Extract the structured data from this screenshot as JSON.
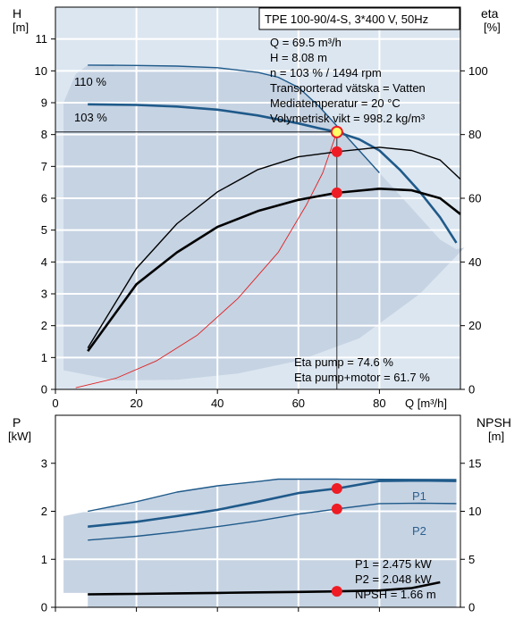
{
  "chart_data": [
    {
      "type": "line",
      "panel": "head-efficiency",
      "left_axis": {
        "title": "H",
        "unit": "[m]",
        "range": [
          0,
          12
        ],
        "ticks": [
          0,
          1,
          2,
          3,
          4,
          5,
          6,
          7,
          8,
          9,
          10,
          11
        ]
      },
      "right_axis": {
        "title": "eta",
        "unit": "[%]",
        "range": [
          0,
          120
        ],
        "ticks": [
          0,
          20,
          40,
          60,
          80,
          100
        ]
      },
      "x_axis": {
        "title": "Q [m³/h]",
        "range": [
          0,
          100
        ],
        "ticks": [
          0,
          20,
          40,
          60,
          80
        ]
      },
      "grid": true,
      "info_box": {
        "title": "TPE 100-90/4-S, 3*400 V, 50Hz",
        "lines": [
          "Q = 69.5 m³/h",
          "H = 8.08 m",
          "n = 103 % / 1494 rpm",
          "Transporterad vätska = Vatten",
          "Mediatemperatur = 20 °C",
          "Volymetrisk vikt = 998.2 kg/m³"
        ]
      },
      "annotations": [
        "Eta pump = 74.6 %",
        "Eta pump+motor = 61.7 %"
      ],
      "series": [
        {
          "name": "110 %",
          "axis": "left",
          "color": "#1f5a8a",
          "points": [
            [
              8,
              10.18
            ],
            [
              20,
              10.17
            ],
            [
              30,
              10.15
            ],
            [
              40,
              10.1
            ],
            [
              50,
              9.95
            ],
            [
              55,
              9.8
            ],
            [
              60,
              9.48
            ],
            [
              65,
              8.9
            ],
            [
              70,
              8.2
            ],
            [
              75,
              7.5
            ],
            [
              80,
              6.8
            ]
          ]
        },
        {
          "name": "103 %",
          "axis": "left",
          "color": "#1f5a8a",
          "points": [
            [
              8,
              8.95
            ],
            [
              20,
              8.93
            ],
            [
              30,
              8.88
            ],
            [
              40,
              8.78
            ],
            [
              50,
              8.6
            ],
            [
              60,
              8.35
            ],
            [
              65,
              8.2
            ],
            [
              69.5,
              8.08
            ],
            [
              75,
              7.85
            ],
            [
              80,
              7.5
            ],
            [
              85,
              6.9
            ],
            [
              90,
              6.2
            ],
            [
              95,
              5.4
            ],
            [
              99,
              4.6
            ]
          ]
        },
        {
          "name": "",
          "axis": "left",
          "role": "system-curve",
          "color": "#e02020",
          "points": [
            [
              5,
              0.05
            ],
            [
              15,
              0.35
            ],
            [
              25,
              0.9
            ],
            [
              35,
              1.7
            ],
            [
              45,
              2.85
            ],
            [
              55,
              4.3
            ],
            [
              62,
              5.8
            ],
            [
              66,
              6.8
            ],
            [
              69.5,
              8.08
            ]
          ]
        },
        {
          "name": "",
          "axis": "right",
          "role": "eta-pump",
          "color": "#000000",
          "points": [
            [
              8,
              13
            ],
            [
              20,
              38
            ],
            [
              30,
              52
            ],
            [
              40,
              62
            ],
            [
              50,
              69
            ],
            [
              60,
              73
            ],
            [
              69.5,
              74.6
            ],
            [
              80,
              76
            ],
            [
              88,
              75
            ],
            [
              95,
              72
            ],
            [
              100,
              66
            ]
          ]
        },
        {
          "name": "",
          "axis": "right",
          "role": "eta-pump-motor",
          "color": "#000000",
          "points": [
            [
              8,
              12
            ],
            [
              20,
              33
            ],
            [
              30,
              43
            ],
            [
              40,
              51
            ],
            [
              50,
              56
            ],
            [
              60,
              59.5
            ],
            [
              69.5,
              61.7
            ],
            [
              80,
              63
            ],
            [
              88,
              62.5
            ],
            [
              95,
              60
            ],
            [
              100,
              55
            ]
          ]
        }
      ],
      "operating_points": [
        {
          "axis": "left",
          "x": 69.5,
          "y": 8.08
        },
        {
          "axis": "right",
          "x": 69.5,
          "y": 74.6
        },
        {
          "axis": "right",
          "x": 69.5,
          "y": 61.7
        }
      ]
    },
    {
      "type": "line",
      "panel": "power-npsh",
      "left_axis": {
        "title": "P",
        "unit": "[kW]",
        "range": [
          0,
          4
        ],
        "ticks": [
          0,
          1,
          2,
          3
        ]
      },
      "right_axis": {
        "title": "NPSH",
        "unit": "[m]",
        "range": [
          0,
          20
        ],
        "ticks": [
          0,
          5,
          10,
          15
        ]
      },
      "x_axis": {
        "title": "",
        "range": [
          0,
          100
        ],
        "ticks": [
          0,
          20,
          40,
          60,
          80
        ]
      },
      "grid": true,
      "annotations": [
        "P1 = 2.475 kW",
        "P2 = 2.048 kW",
        "NPSH = 1.66 m"
      ],
      "series": [
        {
          "name": "P1",
          "axis": "left",
          "color": "#1f5a8a",
          "points": [
            [
              8,
              1.68
            ],
            [
              20,
              1.78
            ],
            [
              30,
              1.9
            ],
            [
              40,
              2.03
            ],
            [
              50,
              2.2
            ],
            [
              60,
              2.38
            ],
            [
              69.5,
              2.475
            ],
            [
              80,
              2.63
            ],
            [
              90,
              2.64
            ],
            [
              99,
              2.63
            ]
          ]
        },
        {
          "name": "P2",
          "axis": "left",
          "color": "#1f5a8a",
          "points": [
            [
              8,
              1.4
            ],
            [
              20,
              1.48
            ],
            [
              30,
              1.57
            ],
            [
              40,
              1.68
            ],
            [
              50,
              1.8
            ],
            [
              60,
              1.94
            ],
            [
              69.5,
              2.048
            ],
            [
              80,
              2.16
            ],
            [
              90,
              2.17
            ],
            [
              99,
              2.16
            ]
          ]
        },
        {
          "name": "",
          "axis": "left",
          "role": "p1-upper",
          "color": "#1f5a8a",
          "points": [
            [
              8,
              2.0
            ],
            [
              20,
              2.2
            ],
            [
              30,
              2.4
            ],
            [
              40,
              2.53
            ],
            [
              50,
              2.62
            ],
            [
              55,
              2.67
            ],
            [
              69.5,
              2.67
            ],
            [
              99,
              2.66
            ]
          ]
        },
        {
          "name": "",
          "axis": "right",
          "role": "npsh",
          "color": "#000000",
          "points": [
            [
              8,
              1.35
            ],
            [
              20,
              1.4
            ],
            [
              30,
              1.45
            ],
            [
              40,
              1.5
            ],
            [
              50,
              1.55
            ],
            [
              60,
              1.6
            ],
            [
              69.5,
              1.66
            ],
            [
              80,
              1.75
            ],
            [
              88,
              2.0
            ],
            [
              95,
              2.6
            ]
          ]
        }
      ],
      "operating_points": [
        {
          "axis": "left",
          "x": 69.5,
          "y": 2.475
        },
        {
          "axis": "left",
          "x": 69.5,
          "y": 2.048
        },
        {
          "axis": "right",
          "x": 69.5,
          "y": 1.66
        }
      ]
    }
  ],
  "colors": {
    "curve_blue": "#1f5a8a",
    "region": "#c6d3e3",
    "point": "#ee1c24",
    "system": "#e02020",
    "grid": "#ffffff"
  }
}
